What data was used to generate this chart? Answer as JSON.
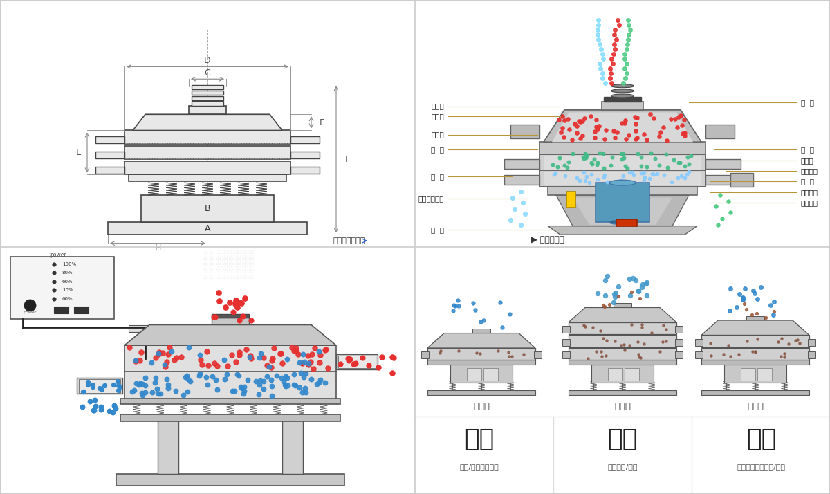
{
  "bg_color": "#ffffff",
  "border_color": "#cccccc",
  "section1_title": "外形尺寸示意图",
  "section2_title": "结构示意图",
  "struct_labels_left": [
    "进料口",
    "防尘盖",
    "出料口",
    "束  环",
    "弹  簧",
    "运输固定螺栓",
    "机  座"
  ],
  "struct_labels_right": [
    "筛  网",
    "网  架",
    "加重块",
    "上部重锤",
    "筛  盘",
    "振动电机",
    "下部重锤"
  ],
  "bottom_left_title": "分级",
  "bottom_middle_title": "过滤",
  "bottom_right_title": "除杂",
  "bottom_left_sub": "颗粒/粉末准确分级",
  "bottom_middle_sub": "去除异物/结块",
  "bottom_right_sub": "去除液体中的颗粒/异物",
  "single_layer": "单层式",
  "triple_layer": "三层式",
  "double_layer": "双层式",
  "red_color": "#e63030",
  "blue_color": "#3388cc",
  "brown_color": "#886644",
  "teal_color": "#44bbaa",
  "line_color": "#444444",
  "dim_line_color": "#888888",
  "label_color": "#333333",
  "sub_color": "#555555",
  "struct_line_color": "#b8973a",
  "machine_face": "#d4d4d4",
  "machine_dark": "#aaaaaa",
  "machine_edge": "#555555"
}
